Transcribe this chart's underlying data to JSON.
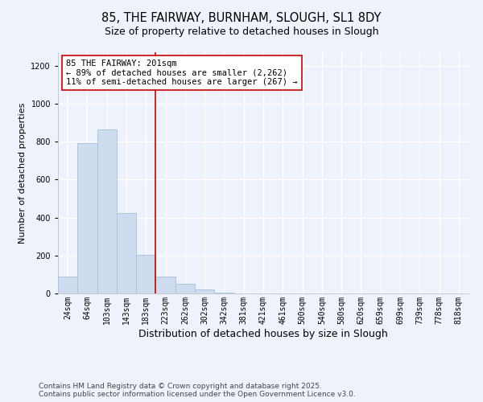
{
  "title": "85, THE FAIRWAY, BURNHAM, SLOUGH, SL1 8DY",
  "subtitle": "Size of property relative to detached houses in Slough",
  "xlabel": "Distribution of detached houses by size in Slough",
  "ylabel": "Number of detached properties",
  "categories": [
    "24sqm",
    "64sqm",
    "103sqm",
    "143sqm",
    "183sqm",
    "223sqm",
    "262sqm",
    "302sqm",
    "342sqm",
    "381sqm",
    "421sqm",
    "461sqm",
    "500sqm",
    "540sqm",
    "580sqm",
    "620sqm",
    "659sqm",
    "699sqm",
    "739sqm",
    "778sqm",
    "818sqm"
  ],
  "values": [
    90,
    790,
    865,
    425,
    205,
    90,
    50,
    20,
    5,
    0,
    0,
    0,
    0,
    0,
    0,
    0,
    0,
    0,
    0,
    0,
    0
  ],
  "bar_color": "#cddcee",
  "bar_edge_color": "#aabfd8",
  "vline_x_index": 4.5,
  "vline_color": "#cc0000",
  "annotation_text": "85 THE FAIRWAY: 201sqm\n← 89% of detached houses are smaller (2,262)\n11% of semi-detached houses are larger (267) →",
  "annotation_box_color": "white",
  "annotation_box_edge": "#cc0000",
  "ylim": [
    0,
    1270
  ],
  "yticks": [
    0,
    200,
    400,
    600,
    800,
    1000,
    1200
  ],
  "footer1": "Contains HM Land Registry data © Crown copyright and database right 2025.",
  "footer2": "Contains public sector information licensed under the Open Government Licence v3.0.",
  "bg_color": "#eef2fb",
  "grid_color": "white",
  "title_fontsize": 10.5,
  "subtitle_fontsize": 9,
  "xlabel_fontsize": 9,
  "ylabel_fontsize": 8,
  "tick_fontsize": 7,
  "footer_fontsize": 6.5,
  "annotation_fontsize": 7.5
}
